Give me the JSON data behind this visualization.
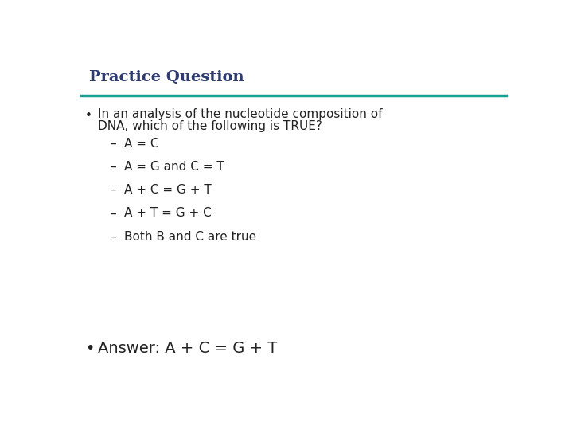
{
  "title": "Practice Question",
  "title_color": "#2E3B6E",
  "title_fontsize": 14,
  "line_color": "#1A9E96",
  "bg_color": "#FFFFFF",
  "bullet_question_line1": "In an analysis of the nucleotide composition of",
  "bullet_question_line2": "DNA, which of the following is TRUE?",
  "sub_items": [
    "A = C",
    "A = G and C = T",
    "A + C = G + T",
    "A + T = G + C",
    "Both B and C are true"
  ],
  "answer": "Answer: A + C = G + T",
  "text_color": "#222222",
  "body_fontsize": 11,
  "answer_fontsize": 14,
  "title_font": "serif",
  "body_font": "sans-serif"
}
